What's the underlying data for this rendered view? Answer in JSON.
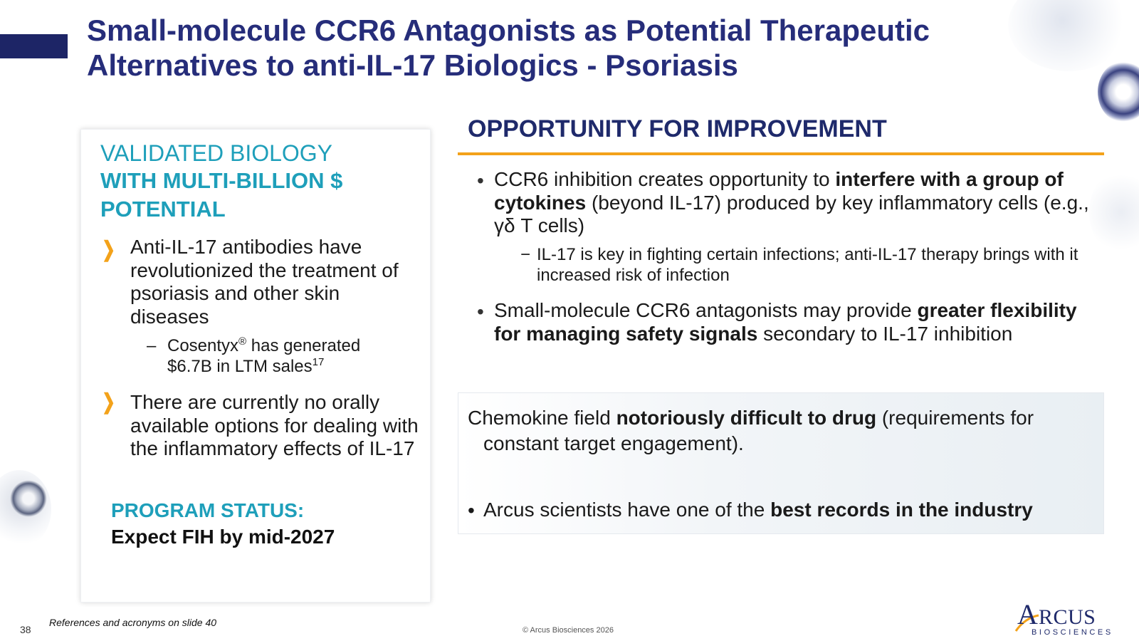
{
  "title": "Small-molecule CCR6 Antagonists as Potential Therapeutic Alternatives to anti-IL-17 Biologics - Psoriasis",
  "left_panel": {
    "heading_light": "VALIDATED BIOLOGY",
    "heading_bold": "WITH MULTI-BILLION $ POTENTIAL",
    "bullet_icon": "chevron-right-icon",
    "bullets": [
      {
        "text": "Anti-IL-17 antibodies have revolutionized the treatment of psoriasis and other skin diseases",
        "sub_dash": "–",
        "sub_pre": "Cosentyx",
        "sub_reg": "®",
        "sub_mid": " has generated $6.7B in LTM sales",
        "sub_ref": "17"
      },
      {
        "text": "There are currently no orally available options for dealing with the inflammatory effects of IL-17"
      }
    ],
    "status_label": "PROGRAM STATUS:",
    "status_value": "Expect FIH by mid-2027"
  },
  "right_panel": {
    "heading": "OPPORTUNITY FOR IMPROVEMENT",
    "bullet_char": "•",
    "bullets": [
      {
        "pre": "CCR6 inhibition creates opportunity to ",
        "bold": "interfere with a group of cytokines",
        "post": " (beyond IL-17) produced by key inflammatory cells (e.g., γδ T cells)",
        "sub_dash": "−",
        "sub": "IL-17 is key in fighting certain infections; anti-IL-17 therapy brings with it increased risk of infection"
      },
      {
        "pre": "Small-molecule CCR6 antagonists may provide ",
        "bold": "greater flexibility for managing safety signals",
        "post": " secondary to IL-17 inhibition"
      }
    ]
  },
  "note_box": {
    "line1_pre": "Chemokine field ",
    "line1_bold": "notoriously difficult to drug",
    "line1_post": " (requirements for constant target engagement).",
    "bullet_char": "•",
    "line2_pre": "Arcus scientists have one of the ",
    "line2_bold": "best records in the industry"
  },
  "footer": {
    "page_number": "38",
    "references": "References and acronyms on slide 40",
    "copyright": "© Arcus Biosciences 2026"
  },
  "logo": {
    "initial": "A",
    "rest": "RCUS",
    "subtitle": "BIOSCIENCES",
    "color": "#1f2a6b"
  },
  "colors": {
    "title": "#262d7a",
    "teal_accent": "#1e9fba",
    "orange_accent": "#f3a21a",
    "navy_bar": "#1d2566"
  }
}
